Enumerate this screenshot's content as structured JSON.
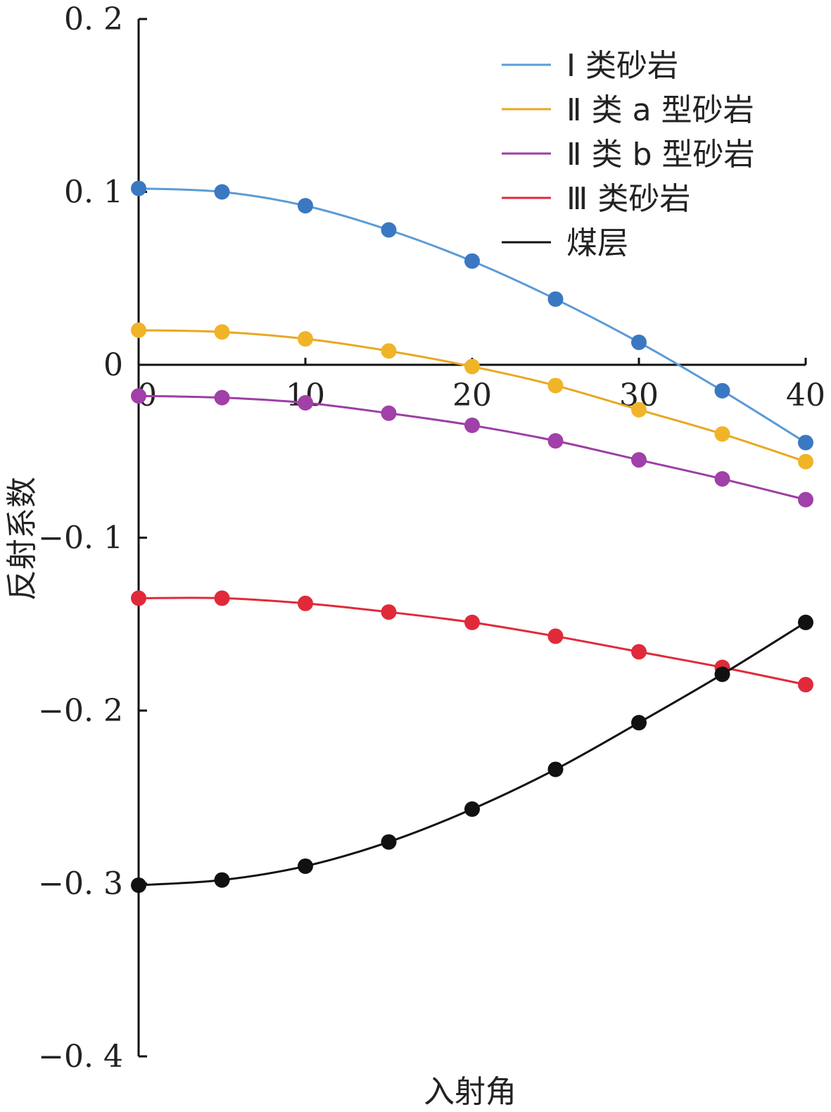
{
  "chart_data": {
    "type": "line",
    "title": "",
    "xlabel": "入射角",
    "ylabel": "反射系数",
    "xlim": [
      0,
      40
    ],
    "ylim": [
      -0.4,
      0.2
    ],
    "x_ticks": [
      0,
      10,
      20,
      30,
      40
    ],
    "x_tick_labels": [
      "0",
      "10",
      "20",
      "30",
      "40"
    ],
    "y_ticks": [
      0.2,
      0.1,
      0,
      -0.1,
      -0.2,
      -0.3,
      -0.4
    ],
    "y_tick_labels": [
      "0. 2",
      "0. 1",
      "0",
      "−0. 1",
      "−0. 2",
      "−0. 3",
      "−0. 4"
    ],
    "grid": false,
    "legend_position": "top-right",
    "x": [
      0,
      5,
      10,
      15,
      20,
      25,
      30,
      35,
      40
    ],
    "series": [
      {
        "name": "Ⅰ 类砂岩",
        "color": "#3a78c2",
        "line_color": "#5b9bd5",
        "values": [
          0.102,
          0.1,
          0.092,
          0.078,
          0.06,
          0.038,
          0.013,
          -0.015,
          -0.045
        ]
      },
      {
        "name": "Ⅱ 类 a 型砂岩",
        "color": "#f0b428",
        "line_color": "#e8a820",
        "values": [
          0.02,
          0.019,
          0.015,
          0.008,
          -0.001,
          -0.012,
          -0.026,
          -0.04,
          -0.056
        ]
      },
      {
        "name": "Ⅱ 类 b 型砂岩",
        "color": "#a040a8",
        "line_color": "#9b3fa3",
        "values": [
          -0.018,
          -0.019,
          -0.022,
          -0.028,
          -0.035,
          -0.044,
          -0.055,
          -0.066,
          -0.078
        ]
      },
      {
        "name": "Ⅲ 类砂岩",
        "color": "#e02a3a",
        "line_color": "#e02a3a",
        "values": [
          -0.135,
          -0.135,
          -0.138,
          -0.143,
          -0.149,
          -0.157,
          -0.166,
          -0.175,
          -0.185
        ]
      },
      {
        "name": "煤层",
        "color": "#111111",
        "line_color": "#111111",
        "values": [
          -0.301,
          -0.298,
          -0.29,
          -0.276,
          -0.257,
          -0.234,
          -0.207,
          -0.179,
          -0.149
        ]
      }
    ]
  }
}
